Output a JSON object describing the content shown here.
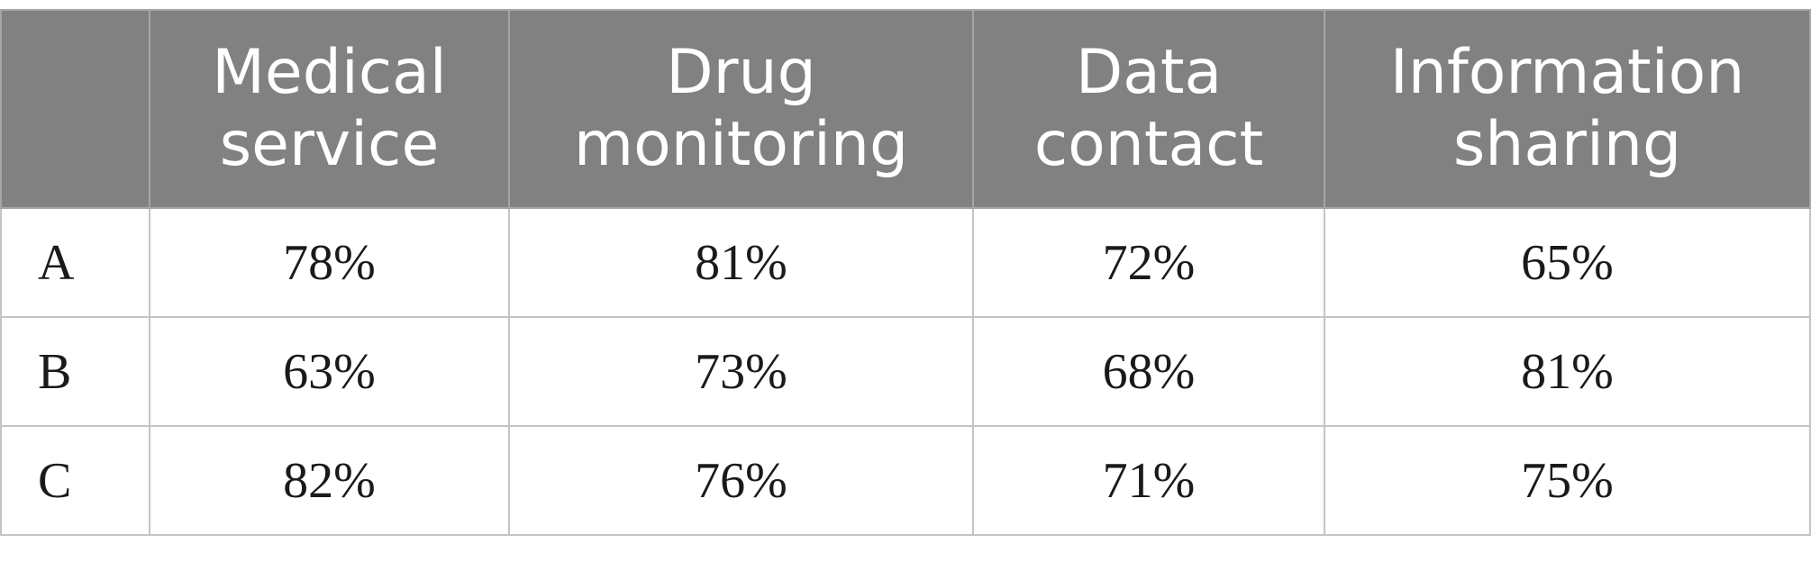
{
  "table": {
    "headers": [
      "",
      [
        "Medical",
        "service"
      ],
      [
        "Drug",
        "monitoring"
      ],
      [
        "Data",
        "contact"
      ],
      [
        "Information",
        "sharing"
      ]
    ],
    "rows": [
      {
        "label": "A",
        "values": [
          "78%",
          "81%",
          "72%",
          "65%"
        ]
      },
      {
        "label": "B",
        "values": [
          "63%",
          "73%",
          "68%",
          "81%"
        ]
      },
      {
        "label": "C",
        "values": [
          "82%",
          "76%",
          "71%",
          "75%"
        ]
      }
    ]
  },
  "colors": {
    "header_background": "#808180",
    "header_text": "#ffffff",
    "grid": "#c4c4c4"
  }
}
